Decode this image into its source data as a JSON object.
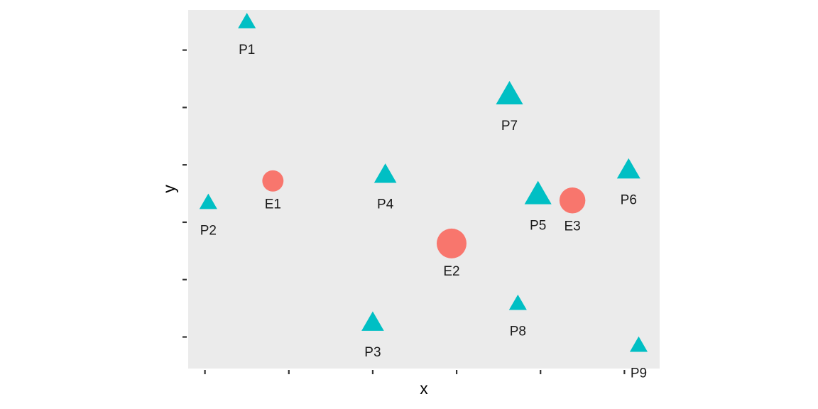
{
  "chart_data": {
    "type": "scatter",
    "xlabel": "x",
    "ylabel": "y",
    "xlim": [
      -0.2,
      5.42
    ],
    "ylim": [
      0.45,
      6.7
    ],
    "x_ticks": [
      0,
      1,
      2,
      3,
      4,
      5
    ],
    "y_ticks": [
      1,
      2,
      3,
      4,
      5,
      6
    ],
    "tick_labels_visible": false,
    "grid": false,
    "legend": "none",
    "panel_background": "#ebebeb",
    "series": [
      {
        "shape": "circle",
        "color": "#f8766d",
        "points": [
          {
            "label": "E1",
            "x": 0.81,
            "y": 3.72,
            "size": 0.45
          },
          {
            "label": "E2",
            "x": 2.94,
            "y": 2.63,
            "size": 1.0
          },
          {
            "label": "E3",
            "x": 4.38,
            "y": 3.38,
            "size": 0.75
          }
        ]
      },
      {
        "shape": "triangle",
        "color": "#00bfc4",
        "points": [
          {
            "label": "P1",
            "x": 0.5,
            "y": 6.47,
            "size": 0.35
          },
          {
            "label": "P2",
            "x": 0.04,
            "y": 3.32,
            "size": 0.35
          },
          {
            "label": "P3",
            "x": 2.0,
            "y": 1.22,
            "size": 0.6
          },
          {
            "label": "P4",
            "x": 2.15,
            "y": 3.8,
            "size": 0.6
          },
          {
            "label": "P5",
            "x": 3.97,
            "y": 3.45,
            "size": 0.85
          },
          {
            "label": "P6",
            "x": 5.05,
            "y": 3.88,
            "size": 0.65
          },
          {
            "label": "P7",
            "x": 3.63,
            "y": 5.19,
            "size": 0.85
          },
          {
            "label": "P8",
            "x": 3.73,
            "y": 1.56,
            "size": 0.35
          },
          {
            "label": "P9",
            "x": 5.17,
            "y": 0.83,
            "size": 0.35
          }
        ]
      }
    ]
  }
}
